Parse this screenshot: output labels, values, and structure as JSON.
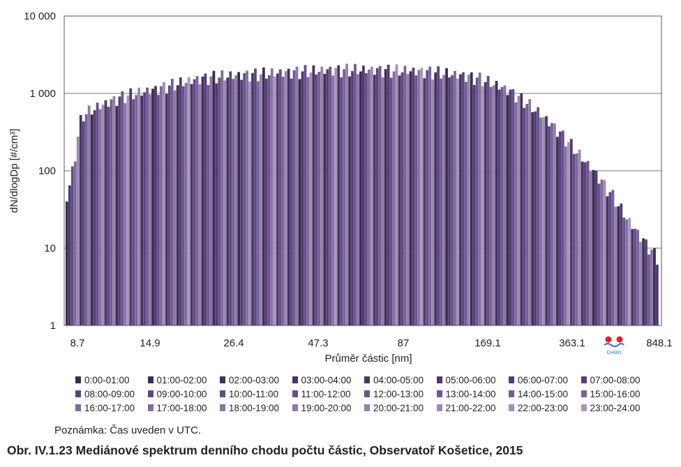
{
  "chart_data": {
    "type": "area",
    "xlabel": "Průměr částic [nm]",
    "ylabel": "dN/dlogDp [#/cm³]",
    "yscale": "log",
    "ylim": [
      1,
      10000
    ],
    "yticks": [
      {
        "value": 1,
        "label": "1"
      },
      {
        "value": 10,
        "label": "10"
      },
      {
        "value": 100,
        "label": "100"
      },
      {
        "value": 1000,
        "label": "1 000"
      },
      {
        "value": 10000,
        "label": "10 000"
      }
    ],
    "xticks": [
      "8.7",
      "14.9",
      "26.4",
      "47.3",
      "87",
      "169.1",
      "363.1",
      "848.1"
    ],
    "grid": "horizontal",
    "legend_position": "bottom",
    "diameter_nm": [
      8.7,
      9.8,
      11.1,
      12.5,
      14.1,
      14.9,
      16.0,
      18.0,
      20.3,
      22.9,
      25.8,
      26.4,
      29.1,
      32.9,
      37.1,
      41.8,
      47.3,
      53.4,
      60.3,
      68.0,
      76.7,
      87.0,
      97.5,
      110.0,
      124.1,
      140.1,
      158.0,
      169.1,
      195.3,
      220.3,
      248.6,
      280.5,
      316.4,
      363.1,
      404.3,
      456.1,
      514.6,
      580.5,
      654.9,
      738.9,
      848.1
    ],
    "median_spectrum_envelope": [
      40,
      550,
      700,
      850,
      1000,
      1100,
      1200,
      1350,
      1500,
      1650,
      1750,
      1800,
      1850,
      1900,
      1950,
      2000,
      2050,
      2100,
      2150,
      2150,
      2150,
      2150,
      2100,
      2100,
      2050,
      2000,
      1900,
      1800,
      1650,
      1400,
      1150,
      850,
      600,
      400,
      250,
      150,
      90,
      50,
      25,
      14,
      8
    ],
    "series_colors_note": "24 hourly series in shades of purple",
    "series": [
      {
        "name": "0:00-01:00",
        "color": "#3b2a52"
      },
      {
        "name": "01:00-02:00",
        "color": "#3f2d57"
      },
      {
        "name": "02:00-03:00",
        "color": "#43305e"
      },
      {
        "name": "03:00-04:00",
        "color": "#473363"
      },
      {
        "name": "04:00-05:00",
        "color": "#4b3668"
      },
      {
        "name": "05:00-06:00",
        "color": "#4f396e"
      },
      {
        "name": "06:00-07:00",
        "color": "#533c73"
      },
      {
        "name": "07:00-08:00",
        "color": "#573f78"
      },
      {
        "name": "08:00-09:00",
        "color": "#5b437e"
      },
      {
        "name": "09:00-10:00",
        "color": "#5f4783"
      },
      {
        "name": "10:00-11:00",
        "color": "#634b87"
      },
      {
        "name": "11:00-12:00",
        "color": "#674f8b"
      },
      {
        "name": "12:00-13:00",
        "color": "#6b538f"
      },
      {
        "name": "13:00-14:00",
        "color": "#6f5892"
      },
      {
        "name": "14:00-15:00",
        "color": "#745d95"
      },
      {
        "name": "15:00-16:00",
        "color": "#786398"
      },
      {
        "name": "16:00-17:00",
        "color": "#7d699b"
      },
      {
        "name": "17:00-18:00",
        "color": "#826f9f"
      },
      {
        "name": "18:00-19:00",
        "color": "#8775a3"
      },
      {
        "name": "19:00-20:00",
        "color": "#8c7ba7"
      },
      {
        "name": "20:00-21:00",
        "color": "#9282ab"
      },
      {
        "name": "21:00-22:00",
        "color": "#9889b0"
      },
      {
        "name": "22:00-23:00",
        "color": "#9e90b5"
      },
      {
        "name": "23:00-24:00",
        "color": "#a598ba"
      }
    ]
  },
  "note": "Poznámka: Čas uveden v UTC.",
  "caption": "Obr. IV.1.23  Mediánové spektrum denního chodu počtu částic, Observatoř Košetice, 2015",
  "logo": {
    "text": "CHMÚ",
    "dot_color": "#d9242b",
    "wave_color": "#2a6fb6"
  }
}
